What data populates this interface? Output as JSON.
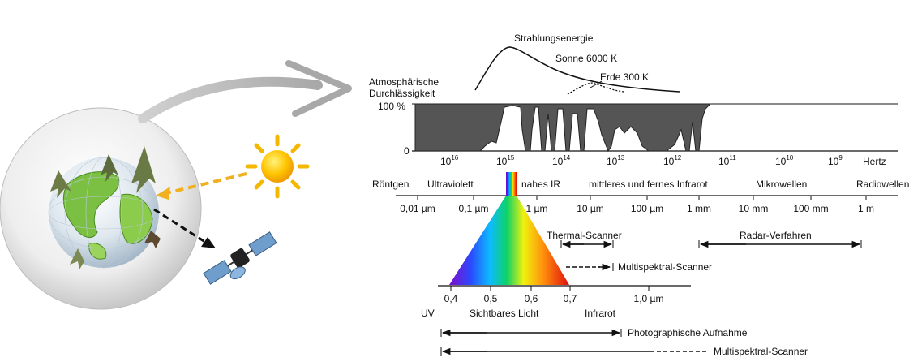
{
  "colors": {
    "transmission_fill": "#555555",
    "sun": "#f5b800",
    "arrow_orange": "#f0b020",
    "globe_rim": "#c8c8c8"
  },
  "energy": {
    "title": "Strahlungsenergie",
    "sun_label": "Sonne 6000 K",
    "earth_label": "Erde 300 K"
  },
  "transmission": {
    "label_line1": "Atmosphärische",
    "label_line2": "Durchlässigkeit",
    "top_label": "100 %",
    "bottom_label": "0"
  },
  "freq_axis": {
    "unit": "Hertz",
    "ticks": [
      {
        "base": "10",
        "exp": "16"
      },
      {
        "base": "10",
        "exp": "15"
      },
      {
        "base": "10",
        "exp": "14"
      },
      {
        "base": "10",
        "exp": "13"
      },
      {
        "base": "10",
        "exp": "12"
      },
      {
        "base": "10",
        "exp": "11"
      },
      {
        "base": "10",
        "exp": "10"
      },
      {
        "base": "10",
        "exp": "9"
      }
    ]
  },
  "bands": [
    "Röntgen",
    "Ultraviolett",
    "nahes IR",
    "mittleres und fernes Infrarot",
    "Mikrowellen",
    "Radiowellen"
  ],
  "wavelength_axis": {
    "ticks": [
      "0,01 µm",
      "0,1 µm",
      "1 µm",
      "10 µm",
      "100 µm",
      "1 mm",
      "10 mm",
      "100 mm",
      "1 m"
    ]
  },
  "sensors": {
    "thermal": "Thermal-Scanner",
    "radar": "Radar-Verfahren",
    "multispectral_top": "Multispektral-Scanner"
  },
  "visible_axis": {
    "ticks": [
      "0,4",
      "0,5",
      "0,6",
      "0,7",
      "1,0 µm"
    ]
  },
  "visible_bands": {
    "uv": "UV",
    "visible": "Sichtbares Licht",
    "infrared": "Infrarot"
  },
  "bottom_sensors": {
    "photo": "Photographische Aufnahme",
    "multispectral": "Multispektral-Scanner"
  }
}
